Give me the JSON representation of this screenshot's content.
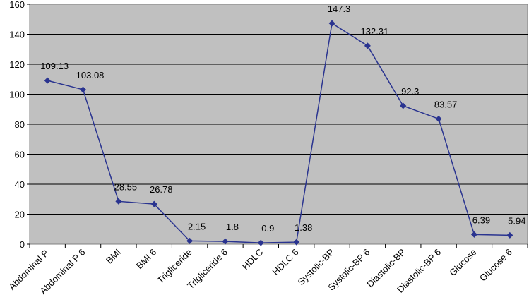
{
  "chart_data": {
    "type": "line",
    "title": "",
    "xlabel": "",
    "ylabel": "",
    "categories": [
      "Abdominal P.",
      "Abdominal P 6",
      "BMI",
      "BMI 6",
      "Trigliceride",
      "Trigliceride 6",
      "HDLC",
      "HDLC 6",
      "Systolic-BP",
      "Systolic-BP 6",
      "Diastolic-BP",
      "Diastolic-BP 6",
      "Glucose",
      "Glucose 6"
    ],
    "series": [
      {
        "values": [
          109.13,
          103.08,
          28.55,
          26.78,
          2.15,
          1.8,
          0.9,
          1.38,
          147.3,
          132.31,
          92.3,
          83.57,
          6.39,
          5.94
        ],
        "data_labels": [
          "109.13",
          "103.08",
          "28.55",
          "26.78",
          "2.15",
          "1.8",
          "0.9",
          "1.38",
          "147.3",
          "132.31",
          "92.3",
          "83.57",
          "6.39",
          "5.94"
        ],
        "color": "#2a3490"
      }
    ],
    "ylim": [
      0,
      160
    ],
    "yticks": [
      "0",
      "20",
      "40",
      "60",
      "80",
      "100",
      "120",
      "140",
      "160"
    ],
    "grid": true,
    "legend": "none",
    "plot_background": "#c0c0c0"
  }
}
